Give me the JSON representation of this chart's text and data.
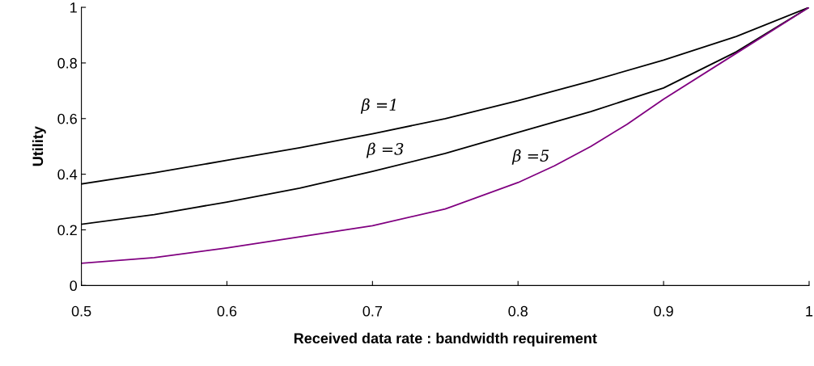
{
  "chart_data": {
    "type": "line",
    "xlabel": "Received data rate : bandwidth requirement",
    "ylabel": "Utility",
    "xlim": [
      0.5,
      1
    ],
    "xticks": [
      0.5,
      0.6,
      0.7,
      0.8,
      0.9,
      1
    ],
    "ylim": [
      0,
      1
    ],
    "yticks": [
      0,
      0.2,
      0.4,
      0.6,
      0.8,
      1
    ],
    "grid": false,
    "legend": false,
    "marker": "none",
    "line_style": "solid",
    "series": [
      {
        "name": "β =1",
        "color": "#000000",
        "x": [
          0.5,
          0.55,
          0.6,
          0.65,
          0.7,
          0.75,
          0.8,
          0.85,
          0.9,
          0.95,
          1
        ],
        "values": [
          0.365,
          0.405,
          0.45,
          0.495,
          0.545,
          0.6,
          0.664,
          0.735,
          0.81,
          0.895,
          1
        ]
      },
      {
        "name": "β =3",
        "color": "#000000",
        "x": [
          0.5,
          0.55,
          0.6,
          0.65,
          0.7,
          0.75,
          0.8,
          0.85,
          0.9,
          0.95,
          1
        ],
        "values": [
          0.22,
          0.255,
          0.3,
          0.35,
          0.41,
          0.475,
          0.55,
          0.625,
          0.71,
          0.84,
          1
        ]
      },
      {
        "name": "β =5",
        "color": "#800080",
        "x": [
          0.5,
          0.55,
          0.6,
          0.65,
          0.7,
          0.75,
          0.8,
          0.825,
          0.85,
          0.875,
          0.9,
          0.95,
          1
        ],
        "values": [
          0.08,
          0.1,
          0.135,
          0.175,
          0.215,
          0.275,
          0.37,
          0.43,
          0.5,
          0.58,
          0.67,
          0.835,
          1
        ]
      }
    ]
  }
}
